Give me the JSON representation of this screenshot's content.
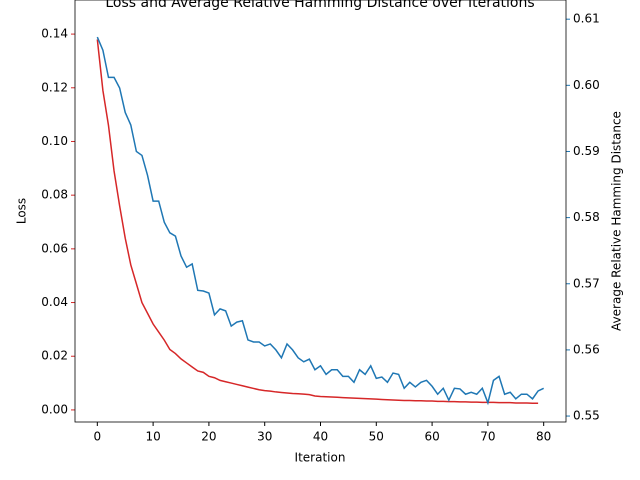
{
  "chart_data": {
    "type": "line",
    "title": "Loss and Average Relative Hamming Distance over Iterations",
    "xlabel": "Iteration",
    "ylabel": "Loss",
    "y2label": "Average Relative Hamming Distance",
    "x": [
      0,
      1,
      2,
      3,
      4,
      5,
      6,
      7,
      8,
      9,
      10,
      11,
      12,
      13,
      14,
      15,
      16,
      17,
      18,
      19,
      20,
      21,
      22,
      23,
      24,
      25,
      26,
      27,
      28,
      29,
      30,
      31,
      32,
      33,
      34,
      35,
      36,
      37,
      38,
      39,
      40,
      41,
      42,
      43,
      44,
      45,
      46,
      47,
      48,
      49,
      50,
      51,
      52,
      53,
      54,
      55,
      56,
      57,
      58,
      59,
      60,
      61,
      62,
      63,
      64,
      65,
      66,
      67,
      68,
      69,
      70,
      71,
      72,
      73,
      74,
      75,
      76,
      77,
      78,
      79,
      80
    ],
    "series": [
      {
        "name": "Loss",
        "color": "#d62728",
        "axis": "y",
        "values": [
          0.138,
          0.119,
          0.106,
          0.089,
          0.076,
          0.064,
          0.054,
          0.047,
          0.04,
          0.036,
          0.032,
          0.029,
          0.026,
          0.0225,
          0.021,
          0.019,
          0.0175,
          0.016,
          0.0145,
          0.014,
          0.0125,
          0.012,
          0.011,
          0.0105,
          0.01,
          0.0095,
          0.009,
          0.0085,
          0.008,
          0.0075,
          0.0072,
          0.007,
          0.0067,
          0.0065,
          0.0063,
          0.0061,
          0.006,
          0.0059,
          0.0057,
          0.0052,
          0.005,
          0.0049,
          0.0048,
          0.0047,
          0.0046,
          0.0045,
          0.0044,
          0.0043,
          0.0042,
          0.0041,
          0.004,
          0.0039,
          0.0038,
          0.0037,
          0.0036,
          0.0035,
          0.0035,
          0.0034,
          0.0034,
          0.0033,
          0.0033,
          0.0032,
          0.0032,
          0.0031,
          0.0031,
          0.003,
          0.003,
          0.0029,
          0.0029,
          0.0028,
          0.0028,
          0.0028,
          0.0027,
          0.0027,
          0.0027,
          0.0026,
          0.0026,
          0.0026,
          0.0025,
          0.0025,
          null
        ]
      },
      {
        "name": "Average Relative Hamming Distance",
        "color": "#1f77b4",
        "axis": "y2",
        "values": [
          0.6073,
          0.6053,
          0.6012,
          0.6012,
          0.5996,
          0.5959,
          0.594,
          0.59,
          0.5894,
          0.5864,
          0.5825,
          0.5825,
          0.5793,
          0.5777,
          0.5772,
          0.5742,
          0.5725,
          0.573,
          0.569,
          0.5689,
          0.5686,
          0.5653,
          0.5662,
          0.5659,
          0.5636,
          0.5642,
          0.5644,
          0.5615,
          0.5612,
          0.5612,
          0.5606,
          0.5609,
          0.56,
          0.5588,
          0.5609,
          0.56,
          0.5588,
          0.5582,
          0.5586,
          0.557,
          0.5576,
          0.5563,
          0.557,
          0.557,
          0.556,
          0.556,
          0.5551,
          0.557,
          0.5563,
          0.5576,
          0.5557,
          0.5559,
          0.5551,
          0.5565,
          0.5563,
          0.5542,
          0.5551,
          0.5544,
          0.5551,
          0.5554,
          0.5545,
          0.5533,
          0.5542,
          0.5524,
          0.5542,
          0.5541,
          0.5533,
          0.5536,
          0.5533,
          0.5542,
          0.552,
          0.5554,
          0.556,
          0.5533,
          0.5536,
          0.5526,
          0.5533,
          0.5533,
          0.5526,
          0.5538,
          0.5542
        ]
      }
    ],
    "xlim": [
      -4,
      84
    ],
    "xticks": [
      0,
      10,
      20,
      30,
      40,
      50,
      60,
      70,
      80
    ],
    "ylim": [
      -0.0045,
      0.1527
    ],
    "yticks": [
      {
        "value": 0,
        "label": "0.00"
      },
      {
        "value": 0.02,
        "label": "0.02"
      },
      {
        "value": 0.04,
        "label": "0.04"
      },
      {
        "value": 0.06,
        "label": "0.06"
      },
      {
        "value": 0.08,
        "label": "0.08"
      },
      {
        "value": 0.1,
        "label": "0.10"
      },
      {
        "value": 0.12,
        "label": "0.12"
      },
      {
        "value": 0.14,
        "label": "0.14"
      }
    ],
    "y2lim": [
      0.5491,
      0.6129
    ],
    "y2ticks": [
      {
        "value": 0.55,
        "label": "0.55"
      },
      {
        "value": 0.56,
        "label": "0.56"
      },
      {
        "value": 0.57,
        "label": "0.57"
      },
      {
        "value": 0.58,
        "label": "0.58"
      },
      {
        "value": 0.59,
        "label": "0.59"
      },
      {
        "value": 0.6,
        "label": "0.60"
      },
      {
        "value": 0.61,
        "label": "0.61"
      }
    ]
  }
}
